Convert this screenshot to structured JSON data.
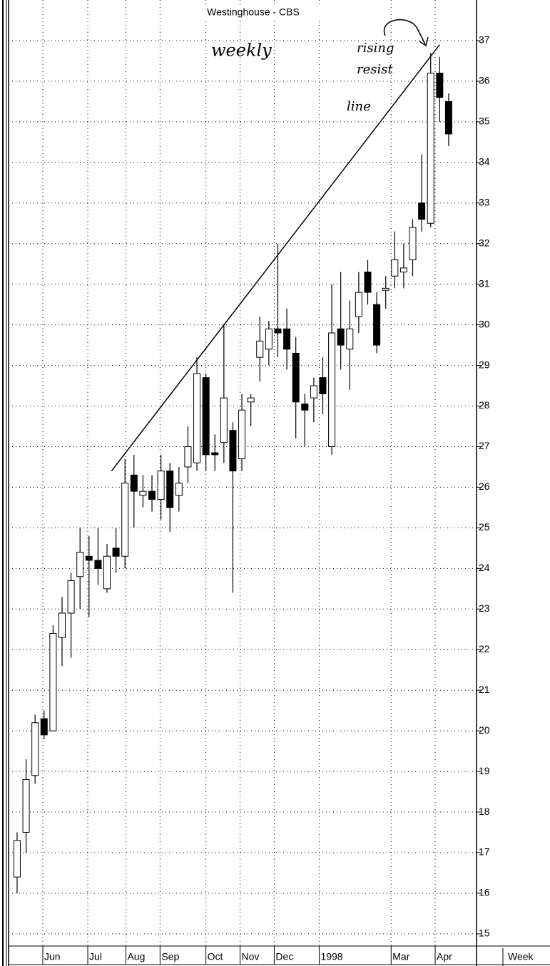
{
  "chart_data": {
    "type": "candlestick",
    "title": "Westinghouse - CBS",
    "x_axis_label": "Week",
    "annotations": [
      "weekly",
      "rising",
      "resist",
      "line"
    ],
    "open": [
      16.4,
      17.5,
      18.9,
      20.3,
      20.0,
      22.3,
      22.9,
      23.8,
      24.3,
      24.2,
      23.5,
      24.5,
      24.3,
      26.3,
      25.8,
      25.9,
      25.7,
      26.4,
      25.8,
      26.5,
      26.6,
      28.7,
      26.85,
      27.1,
      27.4,
      26.7,
      28.1,
      29.2,
      29.4,
      29.9,
      29.9,
      29.3,
      28.05,
      28.2,
      28.7,
      27.0,
      29.9,
      29.4,
      30.2,
      31.3,
      30.5,
      30.85,
      31.2,
      31.3,
      31.6,
      33.0,
      32.5,
      36.2,
      35.5
    ],
    "high": [
      17.5,
      19.3,
      20.4,
      20.5,
      22.6,
      23.3,
      23.9,
      25.0,
      24.8,
      25.0,
      24.6,
      25.0,
      26.7,
      26.8,
      26.3,
      26.3,
      26.8,
      26.6,
      26.5,
      27.5,
      29.2,
      28.8,
      27.3,
      30.0,
      27.6,
      28.3,
      28.3,
      30.2,
      30.1,
      32.0,
      30.4,
      29.7,
      28.3,
      28.7,
      29.2,
      31.0,
      31.3,
      30.6,
      31.3,
      31.6,
      30.8,
      31.2,
      32.3,
      32.0,
      32.6,
      34.2,
      36.7,
      36.6,
      35.7
    ],
    "low": [
      16.0,
      17.0,
      18.7,
      19.8,
      20.0,
      21.6,
      21.8,
      23.0,
      22.8,
      23.6,
      23.4,
      23.9,
      24.0,
      25.0,
      25.5,
      25.4,
      25.2,
      24.9,
      25.4,
      26.1,
      26.4,
      26.4,
      26.4,
      26.6,
      23.4,
      26.4,
      27.5,
      28.6,
      29.0,
      29.2,
      28.9,
      27.2,
      27.0,
      27.6,
      27.8,
      26.8,
      28.9,
      28.4,
      29.8,
      30.5,
      29.3,
      30.4,
      30.9,
      30.9,
      31.2,
      32.3,
      32.4,
      35.0,
      34.4
    ],
    "close": [
      17.3,
      18.8,
      20.2,
      19.9,
      22.4,
      22.9,
      23.7,
      24.4,
      24.2,
      24.0,
      24.3,
      24.3,
      26.1,
      25.9,
      25.9,
      25.7,
      26.4,
      25.5,
      26.1,
      27.0,
      28.8,
      26.8,
      26.8,
      28.2,
      26.4,
      27.9,
      28.2,
      29.6,
      29.9,
      29.8,
      29.4,
      28.1,
      27.9,
      28.5,
      28.3,
      29.8,
      29.5,
      29.9,
      30.8,
      30.8,
      29.5,
      30.9,
      31.6,
      31.4,
      32.4,
      32.6,
      36.2,
      35.6,
      34.7
    ],
    "up_color": "#ffffff",
    "down_color": "#000000",
    "trendline": {
      "x": [
        10.5,
        47.0
      ],
      "y": [
        26.4,
        36.9
      ]
    },
    "xlim": [
      -0.95,
      51.1
    ],
    "xticks": [
      {
        "value": 2.86,
        "label": "Jun"
      },
      {
        "value": 7.86,
        "label": "Jul"
      },
      {
        "value": 12.1,
        "label": "Aug"
      },
      {
        "value": 15.9,
        "label": "Sep"
      },
      {
        "value": 21.0,
        "label": "Oct"
      },
      {
        "value": 24.8,
        "label": "Nov"
      },
      {
        "value": 28.6,
        "label": "Dec"
      },
      {
        "value": 33.6,
        "label": "1998"
      },
      {
        "value": 41.6,
        "label": "Mar"
      },
      {
        "value": 46.5,
        "label": "Apr"
      }
    ],
    "ylim": [
      14.7,
      38.0
    ],
    "yticks": [
      15,
      16,
      17,
      18,
      19,
      20,
      21,
      22,
      23,
      24,
      25,
      26,
      27,
      28,
      29,
      30,
      31,
      32,
      33,
      34,
      35,
      36,
      37
    ],
    "grid": true
  }
}
